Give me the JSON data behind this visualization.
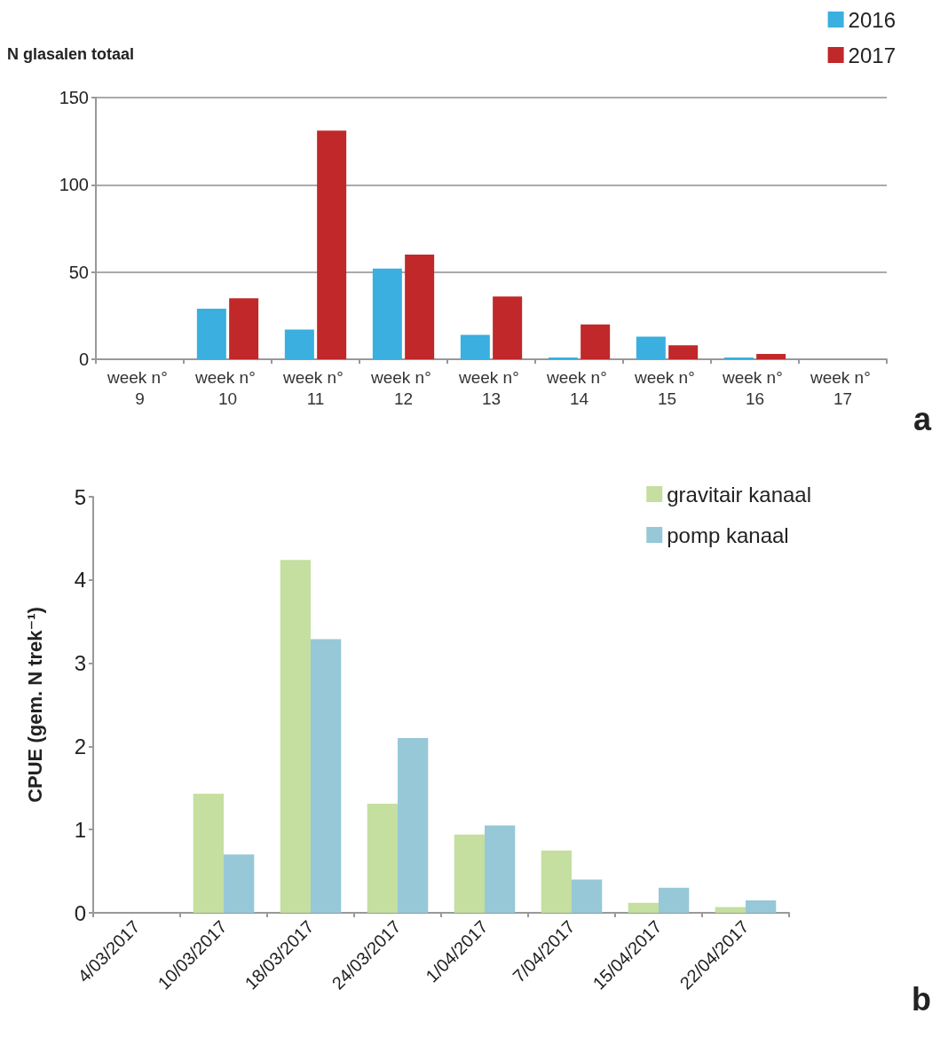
{
  "chart_data": [
    {
      "type": "bar",
      "ylabel": "N glasalen totaal",
      "categories": [
        "week n° 9",
        "week n° 10",
        "week n° 11",
        "week n° 12",
        "week n° 13",
        "week n° 14",
        "week n° 15",
        "week n° 16",
        "week n° 17"
      ],
      "series": [
        {
          "name": "2016",
          "color": "#3aafe0",
          "values": [
            null,
            29,
            17,
            52,
            14,
            1,
            13,
            1,
            0
          ]
        },
        {
          "name": "2017",
          "color": "#c0282a",
          "values": [
            0,
            35,
            131,
            60,
            36,
            20,
            8,
            3,
            null
          ]
        }
      ],
      "ylim": [
        0,
        150
      ],
      "yticks": [
        0,
        50,
        100,
        150
      ],
      "grid": "y",
      "legend": "top right",
      "annotations": [
        "a"
      ]
    },
    {
      "type": "bar",
      "ylabel": "CPUE (gem. N trek⁻¹)",
      "categories": [
        "4/03/2017",
        "10/03/2017",
        "18/03/2017",
        "24/03/2017",
        "1/04/2017",
        "7/04/2017",
        "15/04/2017",
        "22/04/2017"
      ],
      "series": [
        {
          "name": "gravitair kanaal",
          "color": "#c4df9f",
          "values": [
            0,
            1.43,
            4.24,
            1.31,
            0.94,
            0.75,
            0.12,
            0.07
          ]
        },
        {
          "name": "pomp kanaal",
          "color": "#96c8d8",
          "values": [
            0,
            0.7,
            3.29,
            2.1,
            1.05,
            0.4,
            0.3,
            0.15
          ]
        }
      ],
      "ylim": [
        0,
        5
      ],
      "yticks": [
        0,
        1,
        2,
        3,
        4,
        5
      ],
      "grid": false,
      "legend": "top right",
      "annotations": [
        "b"
      ]
    }
  ]
}
